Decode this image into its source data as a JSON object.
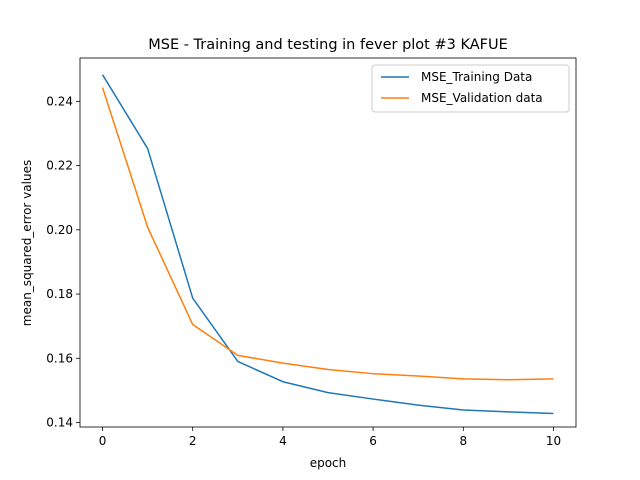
{
  "chart_data": {
    "type": "line",
    "title": "MSE - Training and testing in fever plot #3 KAFUE",
    "xlabel": "epoch",
    "ylabel": "mean_squared_error values",
    "xlim": [
      -0.5,
      10.5
    ],
    "ylim": [
      0.1386,
      0.2535
    ],
    "xticks": [
      0,
      2,
      4,
      6,
      8,
      10
    ],
    "yticks": [
      0.14,
      0.16,
      0.18,
      0.2,
      0.22,
      0.24
    ],
    "ytick_labels": [
      "0.14",
      "0.16",
      "0.18",
      "0.20",
      "0.22",
      "0.24"
    ],
    "x": [
      0,
      1,
      2,
      3,
      4,
      5,
      6,
      7,
      8,
      9,
      10
    ],
    "series": [
      {
        "name": "MSE_Training Data",
        "color": "#1f77b4",
        "values": [
          0.2483,
          0.2253,
          0.1787,
          0.159,
          0.1527,
          0.1493,
          0.1473,
          0.1454,
          0.1439,
          0.1433,
          0.1428
        ]
      },
      {
        "name": "MSE_Validation data",
        "color": "#ff7f0e",
        "values": [
          0.2443,
          0.2008,
          0.1705,
          0.1609,
          0.1585,
          0.1565,
          0.1552,
          0.1545,
          0.1536,
          0.1533,
          0.1536
        ]
      }
    ],
    "grid": false,
    "legend": "top-right"
  }
}
